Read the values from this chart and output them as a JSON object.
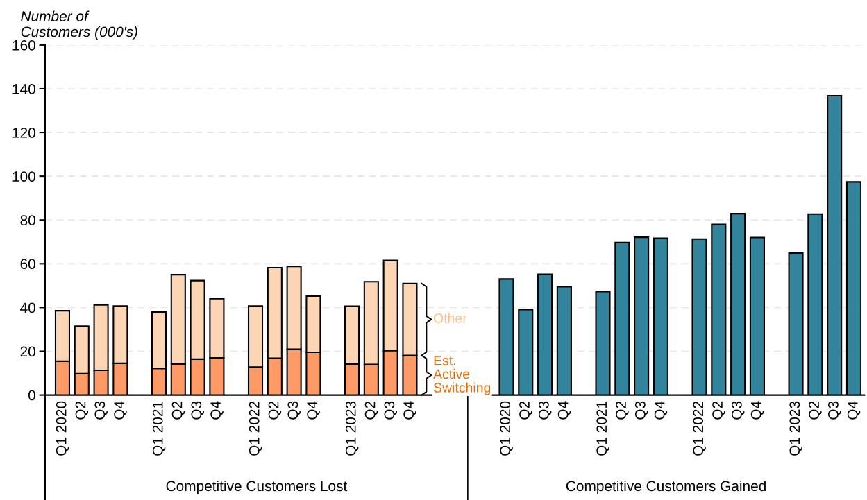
{
  "chart_data": {
    "type": "bar",
    "stacked": true,
    "ylabel": "Number of\nCustomers (000's)",
    "categories": [
      "Q1 2020",
      "Q2",
      "Q3",
      "Q4",
      null,
      "Q1 2021",
      "Q2",
      "Q3",
      "Q4",
      null,
      "Q1 2022",
      "Q2",
      "Q3",
      "Q4",
      null,
      "Q1 2023",
      "Q2",
      "Q3",
      "Q4",
      null,
      null,
      null,
      null,
      "Q1 2020",
      "Q2",
      "Q3",
      "Q4",
      null,
      "Q1 2021",
      "Q2",
      "Q3",
      "Q4",
      null,
      "Q1 2022",
      "Q2",
      "Q3",
      "Q4",
      null,
      "Q1 2023",
      "Q2",
      "Q3",
      "Q4"
    ],
    "series": [
      {
        "name": "Est. Active Switching",
        "color": "#fd9a66",
        "values": [
          15.5,
          9.8,
          11.3,
          14.5,
          null,
          12.2,
          14.2,
          16.4,
          17,
          null,
          12.8,
          16.8,
          20.9,
          19.5,
          null,
          14.1,
          14,
          20.3,
          18.1,
          null,
          null,
          null,
          null,
          null,
          null,
          null,
          null,
          null,
          null,
          null,
          null,
          null,
          null,
          null,
          null,
          null,
          null,
          null,
          null,
          null,
          null,
          null
        ]
      },
      {
        "name": "Other",
        "color": "#fcd5b4",
        "values": [
          23,
          21.7,
          29.9,
          26.2,
          null,
          25.7,
          40.8,
          35.9,
          27,
          null,
          27.9,
          41.4,
          37.9,
          25.7,
          null,
          26.5,
          37.8,
          41.2,
          32.9,
          null,
          null,
          null,
          null,
          null,
          null,
          null,
          null,
          null,
          null,
          null,
          null,
          null,
          null,
          null,
          null,
          null,
          null,
          null,
          null,
          null,
          null,
          null
        ]
      },
      {
        "color": "#31849b",
        "values": [
          null,
          null,
          null,
          null,
          null,
          null,
          null,
          null,
          null,
          null,
          null,
          null,
          null,
          null,
          null,
          null,
          null,
          null,
          null,
          null,
          null,
          null,
          null,
          53,
          39,
          55.2,
          49.5,
          null,
          47.3,
          69.7,
          72.1,
          71.7,
          null,
          71.3,
          78,
          82.9,
          72,
          null,
          64.9,
          82.7,
          136.8,
          97.4
        ]
      }
    ],
    "ylim": [
      0,
      160
    ],
    "yticks": [
      0,
      20,
      40,
      60,
      80,
      100,
      120,
      140,
      160
    ],
    "grid": "y",
    "annotations": [
      "Competitive Customers Lost",
      "Competitive Customers Gained"
    ]
  }
}
